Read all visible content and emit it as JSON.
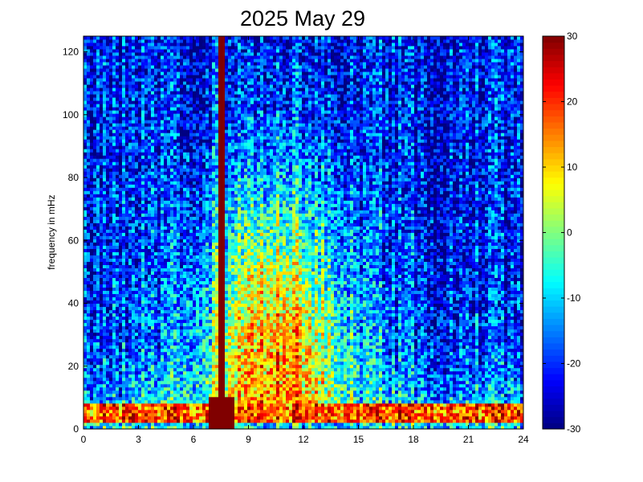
{
  "chart_data": {
    "type": "heatmap",
    "title": "2025 May 29",
    "xlabel": "",
    "ylabel": "frequency in mHz",
    "x_range": [
      0,
      24
    ],
    "y_range": [
      0,
      125
    ],
    "x_ticks": [
      0,
      3,
      6,
      9,
      12,
      15,
      18,
      21,
      24
    ],
    "y_ticks": [
      0,
      20,
      40,
      60,
      80,
      100,
      120
    ],
    "colorbar": {
      "range": [
        -30,
        30
      ],
      "ticks": [
        30,
        20,
        10,
        0,
        -10,
        -20,
        -30
      ],
      "colormap": "jet"
    },
    "grid": false,
    "features": {
      "vertical_band_hour": 7.6,
      "vertical_band_value": 30,
      "low_frequency_band_mhz": [
        2,
        8
      ],
      "low_frequency_band_value": 24,
      "high_activity_hours": [
        5,
        16
      ],
      "high_activity_value_at_40mhz": 10,
      "quiet_value_at_110mhz": -22
    }
  }
}
